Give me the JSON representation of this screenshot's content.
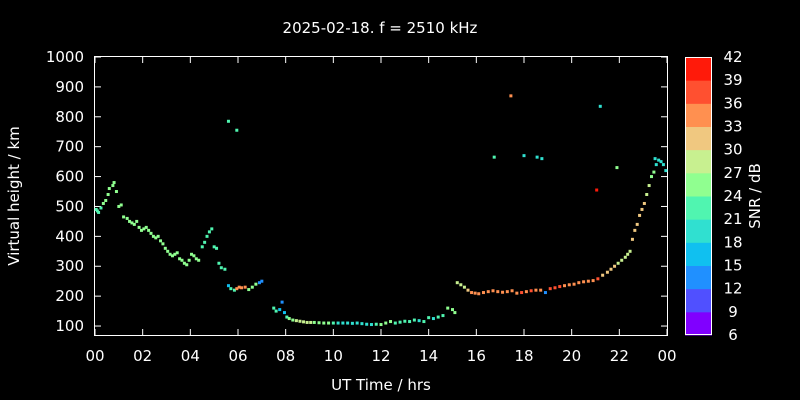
{
  "chart_data": {
    "type": "scatter",
    "title": "2025-02-18. f = 2510 kHz",
    "xlabel": "UT Time / hrs",
    "ylabel": "Virtual height / km",
    "colorbar_label": "SNR / dB",
    "xlim": [
      0,
      24
    ],
    "ylim": [
      70,
      1000
    ],
    "x_ticks": [
      "00",
      "02",
      "04",
      "06",
      "08",
      "10",
      "12",
      "14",
      "16",
      "18",
      "20",
      "22",
      "00"
    ],
    "y_ticks": [
      "100",
      "200",
      "300",
      "400",
      "500",
      "600",
      "700",
      "800",
      "900",
      "1000"
    ],
    "colorbar_ticks": [
      "6",
      "9",
      "12",
      "15",
      "18",
      "21",
      "24",
      "27",
      "30",
      "33",
      "36",
      "39",
      "42"
    ],
    "snr_range": [
      6,
      42
    ],
    "colormap": [
      "#8000ff",
      "#5050ff",
      "#2090ff",
      "#10c0f0",
      "#30e0d0",
      "#50f5b0",
      "#90ff90",
      "#c8f090",
      "#f0c880",
      "#ff9050",
      "#ff5030",
      "#ff1a0a"
    ],
    "grid": false,
    "points": [
      [
        0.05,
        490,
        22
      ],
      [
        0.1,
        485,
        22
      ],
      [
        0.15,
        480,
        22
      ],
      [
        0.25,
        495,
        22
      ],
      [
        0.35,
        510,
        24
      ],
      [
        0.45,
        520,
        24
      ],
      [
        0.55,
        540,
        24
      ],
      [
        0.6,
        560,
        24
      ],
      [
        0.75,
        570,
        24
      ],
      [
        0.8,
        580,
        24
      ],
      [
        0.9,
        550,
        24
      ],
      [
        1.0,
        500,
        24
      ],
      [
        1.1,
        505,
        24
      ],
      [
        1.2,
        465,
        24
      ],
      [
        1.35,
        460,
        24
      ],
      [
        1.45,
        450,
        24
      ],
      [
        1.55,
        445,
        25
      ],
      [
        1.65,
        440,
        25
      ],
      [
        1.75,
        450,
        25
      ],
      [
        1.85,
        430,
        25
      ],
      [
        1.95,
        420,
        25
      ],
      [
        2.05,
        425,
        25
      ],
      [
        2.15,
        430,
        25
      ],
      [
        2.25,
        420,
        25
      ],
      [
        2.35,
        410,
        25
      ],
      [
        2.45,
        400,
        25
      ],
      [
        2.55,
        395,
        25
      ],
      [
        2.65,
        400,
        25
      ],
      [
        2.75,
        385,
        25
      ],
      [
        2.85,
        375,
        25
      ],
      [
        2.95,
        360,
        26
      ],
      [
        3.05,
        350,
        26
      ],
      [
        3.15,
        340,
        26
      ],
      [
        3.25,
        335,
        26
      ],
      [
        3.35,
        340,
        26
      ],
      [
        3.45,
        345,
        26
      ],
      [
        3.55,
        325,
        26
      ],
      [
        3.65,
        320,
        26
      ],
      [
        3.75,
        310,
        26
      ],
      [
        3.85,
        305,
        26
      ],
      [
        3.95,
        320,
        26
      ],
      [
        4.05,
        340,
        24
      ],
      [
        4.15,
        335,
        24
      ],
      [
        4.25,
        325,
        24
      ],
      [
        4.35,
        320,
        24
      ],
      [
        4.5,
        365,
        22
      ],
      [
        4.6,
        380,
        22
      ],
      [
        4.7,
        400,
        23
      ],
      [
        4.8,
        415,
        23
      ],
      [
        4.9,
        425,
        23
      ],
      [
        5.0,
        365,
        23
      ],
      [
        5.1,
        360,
        23
      ],
      [
        5.2,
        310,
        21
      ],
      [
        5.3,
        295,
        21
      ],
      [
        5.45,
        290,
        21
      ],
      [
        5.6,
        235,
        16
      ],
      [
        5.7,
        225,
        21
      ],
      [
        5.85,
        220,
        22
      ],
      [
        5.95,
        225,
        33
      ],
      [
        6.05,
        230,
        33
      ],
      [
        6.15,
        228,
        33
      ],
      [
        6.3,
        230,
        33
      ],
      [
        6.45,
        222,
        24
      ],
      [
        6.6,
        230,
        24
      ],
      [
        6.75,
        240,
        24
      ],
      [
        6.9,
        245,
        12
      ],
      [
        7.0,
        250,
        12
      ],
      [
        5.6,
        785,
        22
      ],
      [
        5.95,
        755,
        22
      ],
      [
        7.5,
        160,
        22
      ],
      [
        7.6,
        150,
        22
      ],
      [
        7.75,
        155,
        16
      ],
      [
        7.85,
        180,
        12
      ],
      [
        7.95,
        145,
        16
      ],
      [
        8.05,
        130,
        22
      ],
      [
        8.15,
        125,
        26
      ],
      [
        8.3,
        120,
        26
      ],
      [
        8.45,
        118,
        27
      ],
      [
        8.6,
        116,
        28
      ],
      [
        8.75,
        114,
        28
      ],
      [
        8.9,
        112,
        28
      ],
      [
        9.05,
        112,
        27
      ],
      [
        9.2,
        112,
        26
      ],
      [
        9.4,
        111,
        26
      ],
      [
        9.6,
        110,
        26
      ],
      [
        9.8,
        110,
        24
      ],
      [
        10.0,
        110,
        22
      ],
      [
        10.2,
        110,
        20
      ],
      [
        10.4,
        110,
        18
      ],
      [
        10.6,
        110,
        18
      ],
      [
        10.8,
        109,
        18
      ],
      [
        11.0,
        110,
        18
      ],
      [
        11.2,
        108,
        18
      ],
      [
        11.4,
        106,
        18
      ],
      [
        11.6,
        105,
        20
      ],
      [
        11.8,
        106,
        22
      ],
      [
        12.0,
        105,
        24
      ],
      [
        12.2,
        110,
        24
      ],
      [
        12.4,
        115,
        24
      ],
      [
        12.6,
        110,
        22
      ],
      [
        12.8,
        113,
        22
      ],
      [
        13.0,
        116,
        22
      ],
      [
        13.2,
        115,
        22
      ],
      [
        13.4,
        120,
        22
      ],
      [
        13.6,
        118,
        20
      ],
      [
        13.8,
        115,
        22
      ],
      [
        14.0,
        128,
        22
      ],
      [
        14.2,
        125,
        20
      ],
      [
        14.4,
        130,
        22
      ],
      [
        14.6,
        135,
        22
      ],
      [
        14.8,
        160,
        24
      ],
      [
        15.0,
        155,
        24
      ],
      [
        15.1,
        145,
        24
      ],
      [
        15.2,
        245,
        27
      ],
      [
        15.35,
        238,
        27
      ],
      [
        15.5,
        230,
        28
      ],
      [
        15.65,
        220,
        30
      ],
      [
        15.8,
        212,
        33
      ],
      [
        15.95,
        210,
        33
      ],
      [
        16.1,
        208,
        33
      ],
      [
        16.3,
        212,
        33
      ],
      [
        16.5,
        215,
        33
      ],
      [
        16.7,
        218,
        33
      ],
      [
        16.9,
        215,
        33
      ],
      [
        17.1,
        213,
        33
      ],
      [
        17.3,
        215,
        33
      ],
      [
        17.5,
        218,
        33
      ],
      [
        17.7,
        210,
        33
      ],
      [
        17.9,
        212,
        36
      ],
      [
        18.1,
        215,
        33
      ],
      [
        18.3,
        218,
        36
      ],
      [
        18.5,
        220,
        33
      ],
      [
        18.7,
        220,
        33
      ],
      [
        18.9,
        212,
        12
      ],
      [
        19.1,
        225,
        36
      ],
      [
        19.3,
        228,
        36
      ],
      [
        19.5,
        232,
        36
      ],
      [
        19.7,
        235,
        33
      ],
      [
        19.9,
        238,
        33
      ],
      [
        20.1,
        240,
        33
      ],
      [
        20.3,
        245,
        33
      ],
      [
        20.5,
        248,
        33
      ],
      [
        20.7,
        250,
        33
      ],
      [
        20.9,
        252,
        33
      ],
      [
        21.1,
        258,
        36
      ],
      [
        21.3,
        270,
        30
      ],
      [
        21.5,
        280,
        30
      ],
      [
        21.65,
        290,
        30
      ],
      [
        21.8,
        300,
        30
      ],
      [
        21.95,
        310,
        27
      ],
      [
        22.1,
        320,
        28
      ],
      [
        22.25,
        330,
        28
      ],
      [
        22.35,
        340,
        28
      ],
      [
        22.45,
        350,
        28
      ],
      [
        22.55,
        390,
        30
      ],
      [
        22.65,
        420,
        30
      ],
      [
        22.75,
        440,
        30
      ],
      [
        22.85,
        470,
        30
      ],
      [
        22.95,
        490,
        30
      ],
      [
        23.05,
        510,
        30
      ],
      [
        23.15,
        540,
        28
      ],
      [
        23.25,
        570,
        28
      ],
      [
        23.35,
        600,
        24
      ],
      [
        23.45,
        615,
        24
      ],
      [
        23.55,
        640,
        18
      ],
      [
        23.65,
        655,
        18
      ],
      [
        23.75,
        650,
        18
      ],
      [
        23.85,
        640,
        20
      ],
      [
        23.95,
        620,
        20
      ],
      [
        23.5,
        660,
        18
      ],
      [
        16.75,
        665,
        22
      ],
      [
        17.45,
        870,
        33
      ],
      [
        18.0,
        670,
        20
      ],
      [
        18.55,
        665,
        20
      ],
      [
        18.75,
        660,
        20
      ],
      [
        21.05,
        555,
        39
      ],
      [
        21.2,
        835,
        20
      ],
      [
        21.9,
        630,
        24
      ]
    ]
  }
}
